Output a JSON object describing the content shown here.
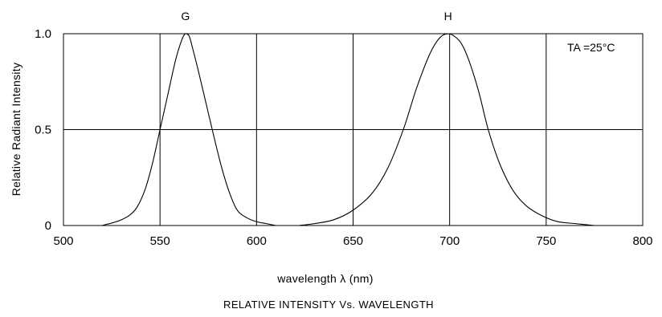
{
  "chart_data": {
    "type": "line",
    "title": "RELATIVE  INTENSITY  Vs.  WAVELENGTH",
    "xlabel": "wavelength  λ  (nm)",
    "ylabel": "Relative  Radiant  Intensity",
    "xlim": [
      500,
      800
    ],
    "ylim": [
      0,
      1.0
    ],
    "x_ticks": [
      "500",
      "550",
      "600",
      "650",
      "700",
      "750",
      "800"
    ],
    "y_ticks": [
      "0",
      "0.5",
      "1.0"
    ],
    "grid": true,
    "legend": "none",
    "annotation": "TA =25°C",
    "series": [
      {
        "name": "G",
        "x": [
          520,
          530,
          537,
          542,
          546,
          550,
          554,
          558,
          561,
          563,
          565,
          567,
          570,
          574,
          578,
          582,
          586,
          590,
          595,
          600,
          605,
          610
        ],
        "y": [
          0.0,
          0.03,
          0.08,
          0.18,
          0.32,
          0.5,
          0.68,
          0.86,
          0.96,
          1.0,
          0.99,
          0.92,
          0.8,
          0.63,
          0.46,
          0.3,
          0.17,
          0.08,
          0.04,
          0.02,
          0.01,
          0.0
        ]
      },
      {
        "name": "H",
        "x": [
          622,
          630,
          640,
          650,
          660,
          668,
          676,
          683,
          690,
          695,
          699,
          702,
          706,
          710,
          715,
          720,
          726,
          733,
          740,
          748,
          756,
          765,
          775
        ],
        "y": [
          0.0,
          0.01,
          0.03,
          0.08,
          0.17,
          0.3,
          0.5,
          0.72,
          0.9,
          0.98,
          1.0,
          0.99,
          0.95,
          0.86,
          0.7,
          0.5,
          0.32,
          0.18,
          0.1,
          0.05,
          0.02,
          0.01,
          0.0
        ]
      }
    ],
    "peak_labels": [
      {
        "text": "G",
        "x": 564
      },
      {
        "text": "H",
        "x": 700
      }
    ]
  }
}
